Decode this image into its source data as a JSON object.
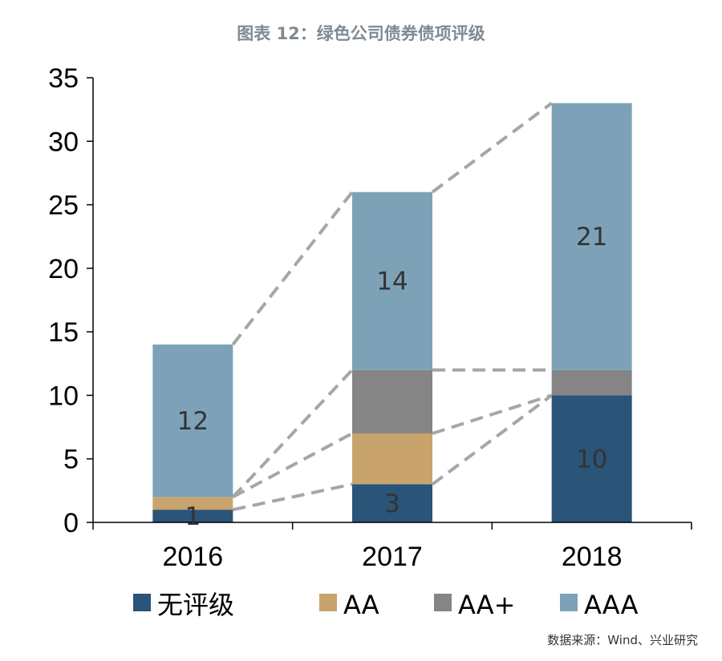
{
  "chart_data": {
    "type": "bar",
    "stacked": true,
    "title": "图表 12：绿色公司债券债项评级",
    "categories": [
      "2016",
      "2017",
      "2018"
    ],
    "series": [
      {
        "name": "无评级",
        "values": [
          1,
          3,
          10
        ],
        "color": "#2a5478"
      },
      {
        "name": "AA",
        "values": [
          1,
          4,
          0
        ],
        "color": "#c8a36c"
      },
      {
        "name": "AA+",
        "values": [
          0,
          5,
          2
        ],
        "color": "#858585"
      },
      {
        "name": "AAA",
        "values": [
          12,
          14,
          21
        ],
        "color": "#7da2b8"
      }
    ],
    "data_labels": [
      {
        "series": 0,
        "category": 0,
        "text": "1"
      },
      {
        "series": 0,
        "category": 1,
        "text": "3"
      },
      {
        "series": 0,
        "category": 2,
        "text": "10"
      },
      {
        "series": 3,
        "category": 0,
        "text": "12"
      },
      {
        "series": 3,
        "category": 1,
        "text": "14"
      },
      {
        "series": 3,
        "category": 2,
        "text": "21"
      }
    ],
    "ylim": [
      0,
      35
    ],
    "yticks": [
      0,
      5,
      10,
      15,
      20,
      25,
      30,
      35
    ],
    "xlabel": "",
    "ylabel": "",
    "legend_position": "bottom",
    "grid": false,
    "connector_color": "#a6a6a6"
  },
  "source": "数据来源：Wind、兴业研究"
}
